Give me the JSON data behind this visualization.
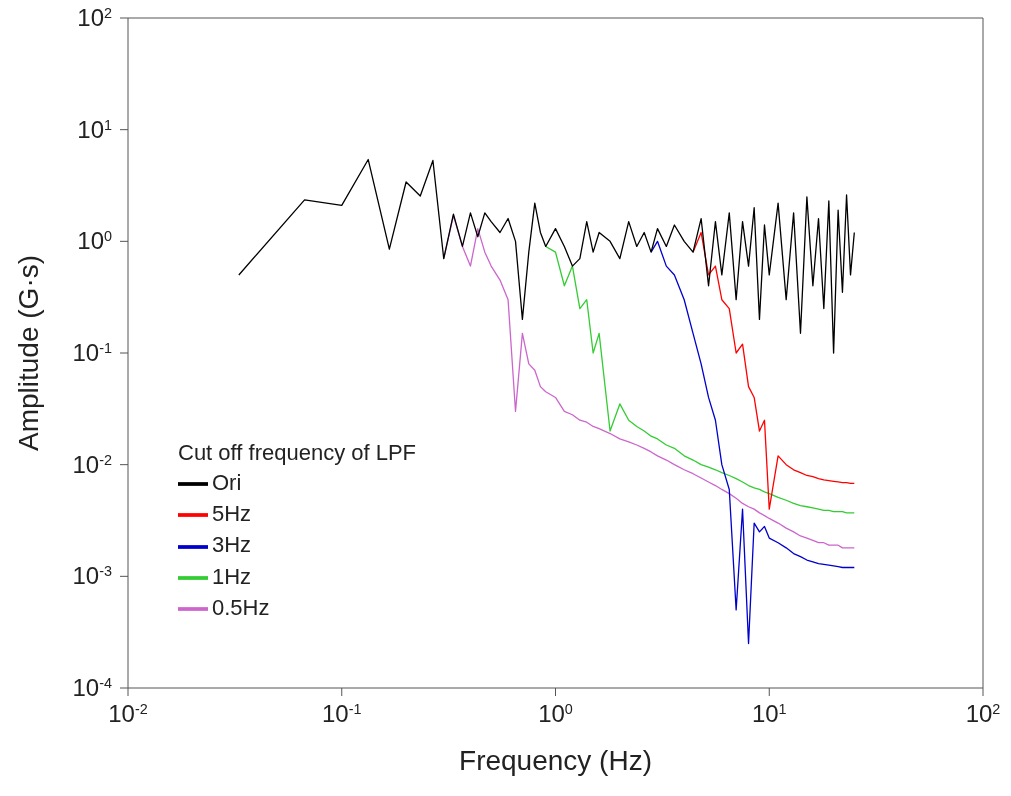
{
  "chart_data": {
    "type": "line",
    "xlabel": "Frequency (Hz)",
    "ylabel": "Amplitude (G·s)",
    "legend_title": "Cut off frequency of LPF",
    "legend": "bottom left",
    "log": "xy",
    "grid": false,
    "marker": "none",
    "line_style": "solid",
    "xlim": [
      0.01,
      100
    ],
    "ylim": [
      0.0001,
      100
    ],
    "xticks": [
      {
        "value": 0.01,
        "label": "10$^{-2}$"
      },
      {
        "value": 0.1,
        "label": "10$^{-1}$"
      },
      {
        "value": 1,
        "label": "10$^{0}$"
      },
      {
        "value": 10,
        "label": "10$^{1}$"
      },
      {
        "value": 100,
        "label": "10$^{2}$"
      }
    ],
    "yticks": [
      {
        "value": 0.0001,
        "label": "10$^{-4}$"
      },
      {
        "value": 0.001,
        "label": "10$^{-3}$"
      },
      {
        "value": 0.01,
        "label": "10$^{-2}$"
      },
      {
        "value": 0.1,
        "label": "10$^{-1}$"
      },
      {
        "value": 1,
        "label": "10$^{0}$"
      },
      {
        "value": 10,
        "label": "10$^{1}$"
      },
      {
        "value": 100,
        "label": "10$^{2}$"
      }
    ],
    "x": [
      0.033,
      0.067,
      0.1,
      0.133,
      0.167,
      0.2,
      0.233,
      0.267,
      0.3,
      0.333,
      0.367,
      0.4,
      0.433,
      0.467,
      0.5,
      0.55,
      0.6,
      0.65,
      0.7,
      0.75,
      0.8,
      0.85,
      0.9,
      1.0,
      1.1,
      1.2,
      1.3,
      1.4,
      1.5,
      1.6,
      1.8,
      2.0,
      2.2,
      2.4,
      2.6,
      2.8,
      3.0,
      3.3,
      3.6,
      4.0,
      4.4,
      4.8,
      5.2,
      5.6,
      6.0,
      6.5,
      7.0,
      7.5,
      8.0,
      8.5,
      9.0,
      9.5,
      10,
      11,
      12,
      13,
      14,
      15,
      16,
      17,
      18,
      19,
      20,
      21,
      22,
      23,
      24,
      25
    ],
    "series": [
      {
        "name": "Ori",
        "color": "#000000",
        "values": [
          0.5,
          2.35,
          2.1,
          5.4,
          0.85,
          3.4,
          2.55,
          5.3,
          0.7,
          1.75,
          0.9,
          1.8,
          1.1,
          1.8,
          1.5,
          1.2,
          1.6,
          1.0,
          0.2,
          0.8,
          2.2,
          1.2,
          0.9,
          1.3,
          0.9,
          0.6,
          0.7,
          1.5,
          0.8,
          1.2,
          1.0,
          0.7,
          1.5,
          0.9,
          1.2,
          0.8,
          1.3,
          0.9,
          1.4,
          1.0,
          0.8,
          1.6,
          0.4,
          1.5,
          0.5,
          1.8,
          0.3,
          1.5,
          0.6,
          2.0,
          0.2,
          1.4,
          0.5,
          2.2,
          0.3,
          1.8,
          0.15,
          2.5,
          0.4,
          1.6,
          0.25,
          2.3,
          0.1,
          1.9,
          0.35,
          2.6,
          0.5,
          1.2
        ]
      },
      {
        "name": "5Hz",
        "color": "#ff0000",
        "values": [
          null,
          null,
          null,
          null,
          null,
          null,
          null,
          null,
          null,
          null,
          null,
          null,
          null,
          null,
          null,
          null,
          null,
          null,
          null,
          null,
          null,
          null,
          null,
          null,
          null,
          null,
          null,
          null,
          null,
          null,
          null,
          null,
          null,
          null,
          null,
          null,
          null,
          null,
          null,
          null,
          0.8,
          1.2,
          0.5,
          0.6,
          0.3,
          0.25,
          0.1,
          0.12,
          0.05,
          0.04,
          0.02,
          0.025,
          0.004,
          0.012,
          0.01,
          0.009,
          0.0085,
          0.008,
          0.0078,
          0.0075,
          0.0073,
          0.0072,
          0.0071,
          0.007,
          0.0069,
          0.0069,
          0.0068,
          0.0068
        ]
      },
      {
        "name": "3Hz",
        "color": "#0000cc",
        "values": [
          null,
          null,
          null,
          null,
          null,
          null,
          null,
          null,
          null,
          null,
          null,
          null,
          null,
          null,
          null,
          null,
          null,
          null,
          null,
          null,
          null,
          null,
          null,
          null,
          null,
          null,
          null,
          null,
          null,
          null,
          null,
          null,
          null,
          null,
          null,
          0.8,
          1.0,
          0.6,
          0.5,
          0.3,
          0.15,
          0.08,
          0.04,
          0.025,
          0.01,
          0.006,
          0.0005,
          0.004,
          0.00025,
          0.003,
          0.0025,
          0.0028,
          0.0022,
          0.002,
          0.0018,
          0.0016,
          0.0015,
          0.0014,
          0.00135,
          0.0013,
          0.00128,
          0.00126,
          0.00124,
          0.00122,
          0.0012,
          0.0012,
          0.0012,
          0.0012
        ]
      },
      {
        "name": "1Hz",
        "color": "#33cc33",
        "values": [
          null,
          null,
          null,
          null,
          null,
          null,
          null,
          null,
          null,
          null,
          null,
          null,
          null,
          null,
          null,
          null,
          null,
          null,
          null,
          null,
          null,
          null,
          0.9,
          0.8,
          0.4,
          0.6,
          0.25,
          0.3,
          0.1,
          0.15,
          0.02,
          0.035,
          0.025,
          0.022,
          0.02,
          0.018,
          0.017,
          0.015,
          0.014,
          0.012,
          0.011,
          0.01,
          0.0095,
          0.009,
          0.0085,
          0.008,
          0.0075,
          0.007,
          0.0065,
          0.0062,
          0.006,
          0.0057,
          0.0055,
          0.0051,
          0.0048,
          0.0045,
          0.0043,
          0.0042,
          0.0041,
          0.004,
          0.0039,
          0.0039,
          0.0038,
          0.0038,
          0.0038,
          0.0037,
          0.0037,
          0.0037
        ]
      },
      {
        "name": "0.5Hz",
        "color": "#cc66cc",
        "values": [
          null,
          null,
          null,
          null,
          null,
          null,
          null,
          null,
          0.7,
          1.7,
          0.9,
          0.6,
          1.3,
          0.8,
          0.6,
          0.45,
          0.3,
          0.03,
          0.15,
          0.08,
          0.07,
          0.05,
          0.045,
          0.04,
          0.03,
          0.028,
          0.025,
          0.024,
          0.022,
          0.021,
          0.019,
          0.017,
          0.016,
          0.015,
          0.014,
          0.013,
          0.012,
          0.011,
          0.01,
          0.009,
          0.0083,
          0.0076,
          0.007,
          0.0065,
          0.006,
          0.0055,
          0.005,
          0.0045,
          0.0042,
          0.004,
          0.0037,
          0.0035,
          0.0033,
          0.003,
          0.0027,
          0.0025,
          0.0023,
          0.0022,
          0.0021,
          0.002,
          0.002,
          0.0019,
          0.0019,
          0.0019,
          0.0018,
          0.0018,
          0.0018,
          0.0018
        ]
      }
    ]
  }
}
